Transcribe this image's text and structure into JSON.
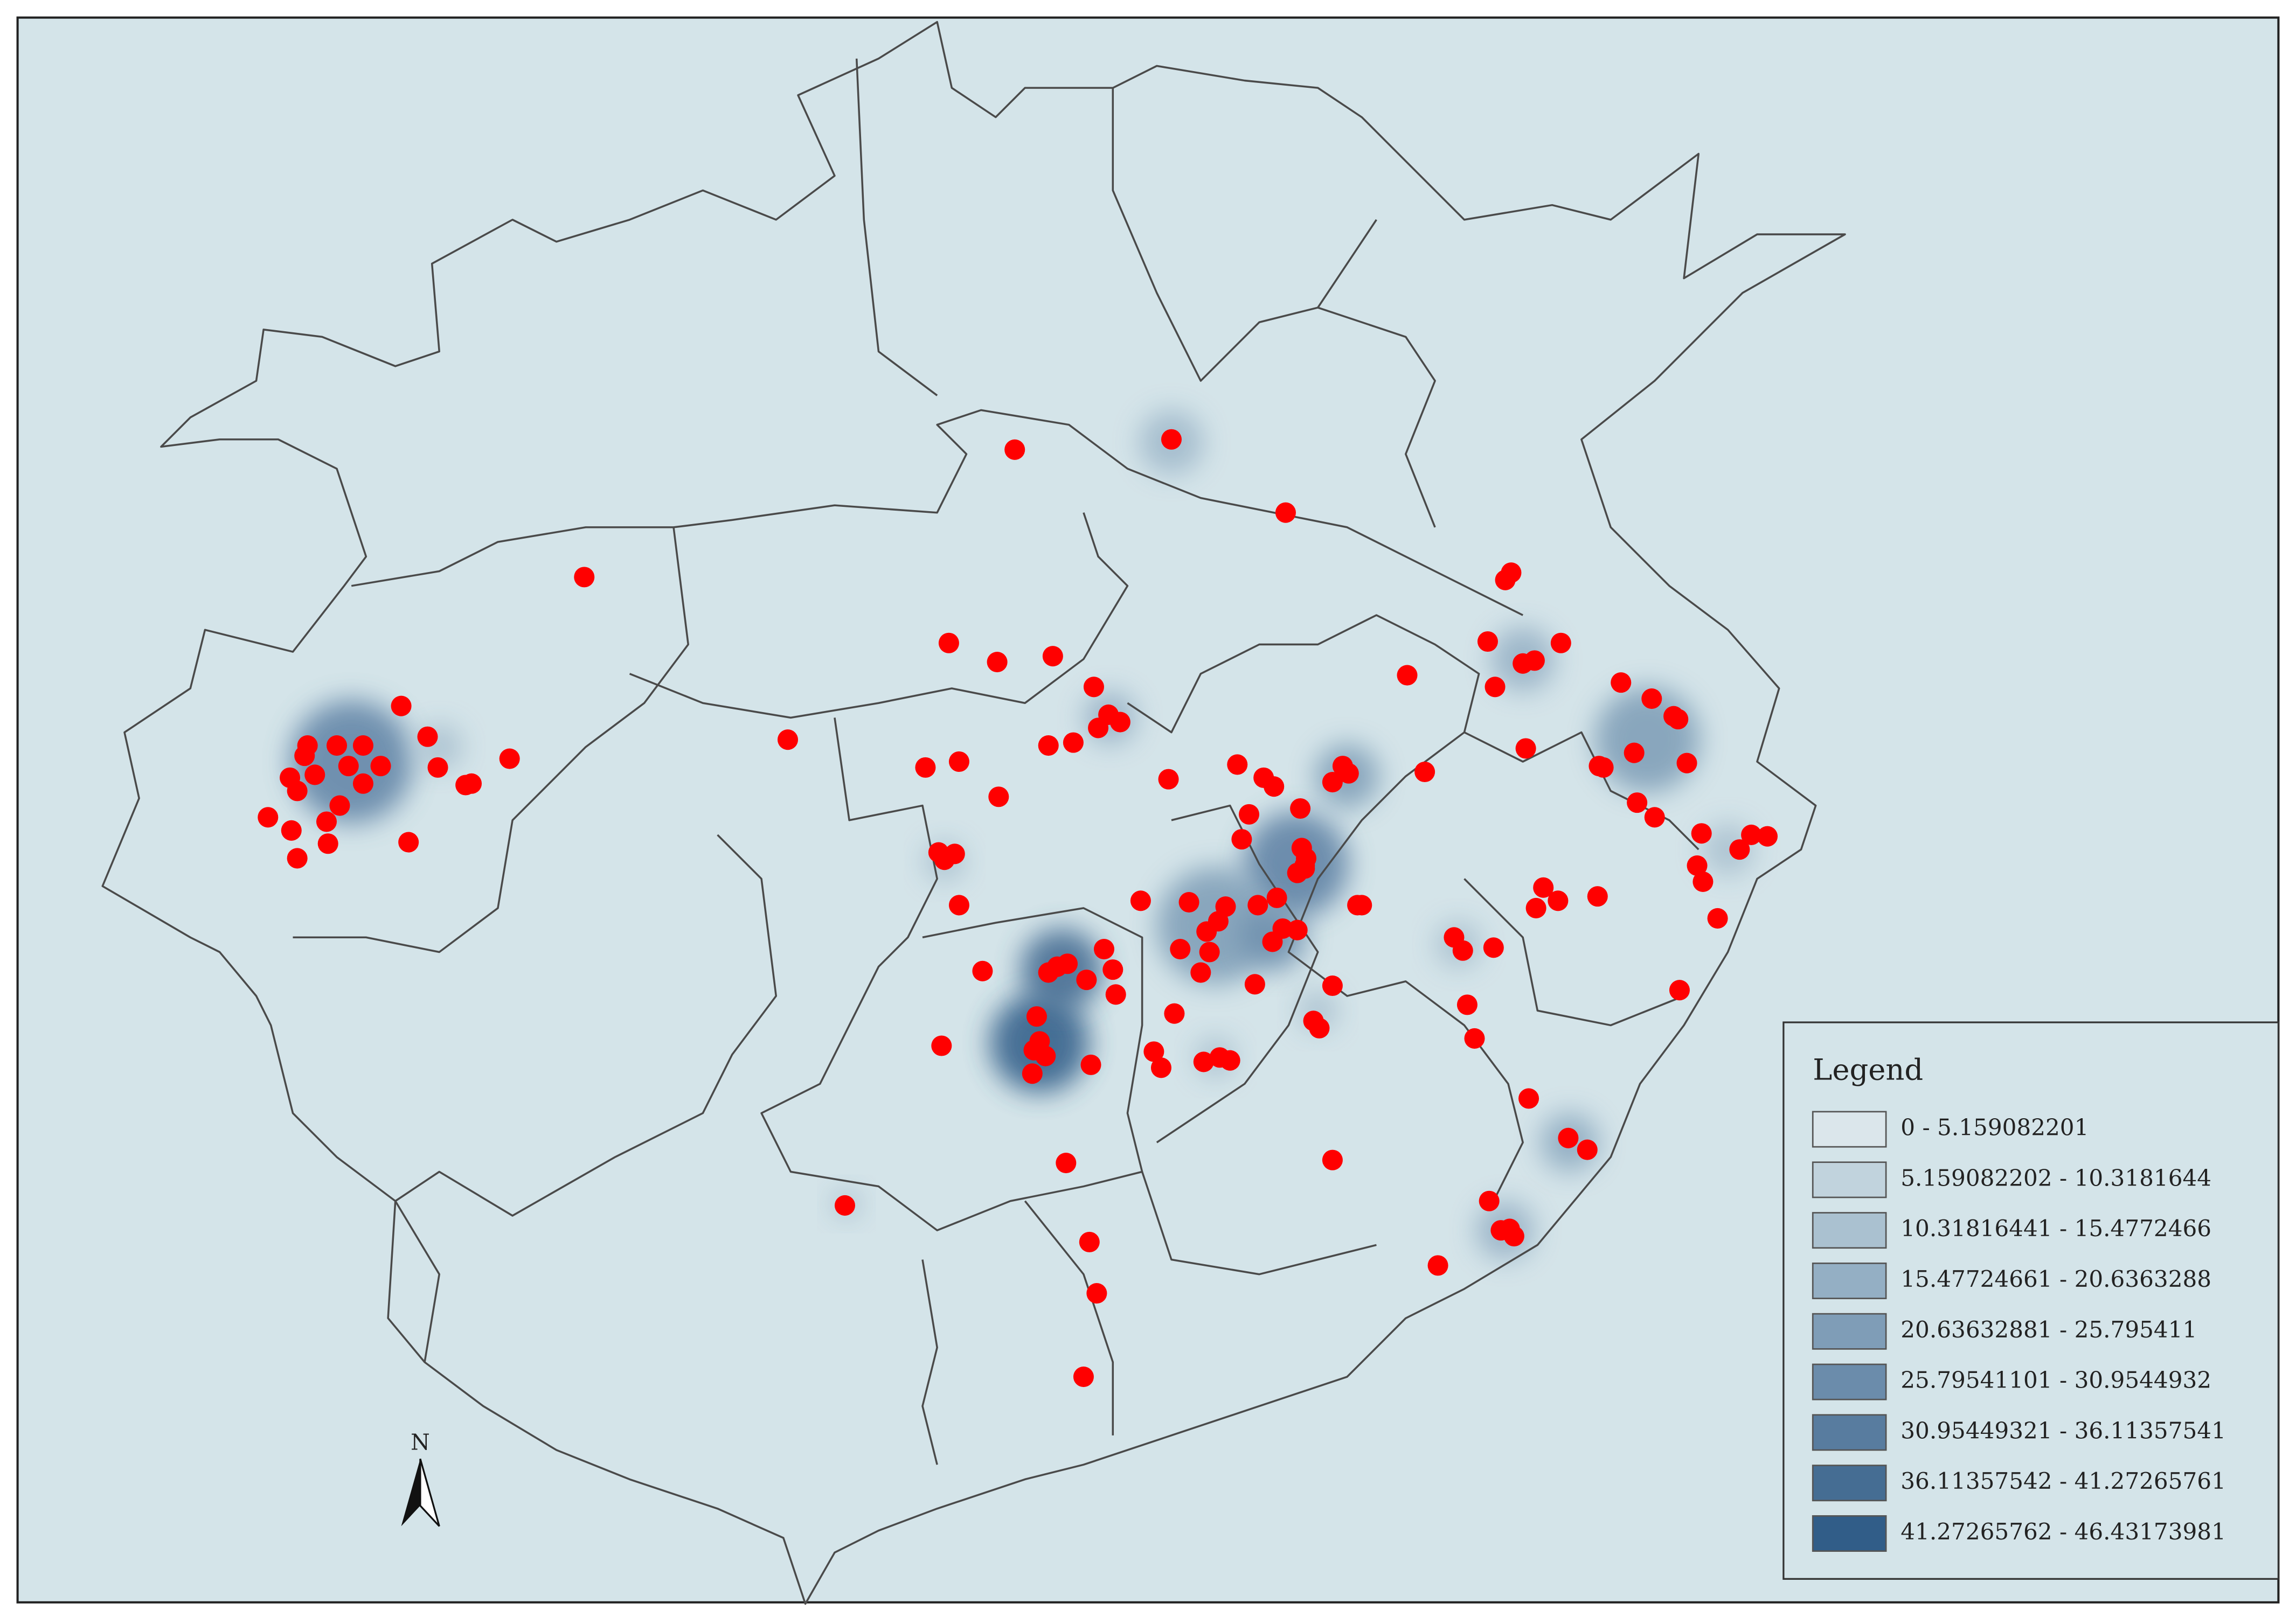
{
  "legend": {
    "title": "Legend",
    "items": [
      {
        "label": "0 - 5.159082201",
        "color": "#dbe6eb"
      },
      {
        "label": "5.159082202 - 10.3181644",
        "color": "#c1d3dd"
      },
      {
        "label": "10.31816441 - 15.4772466",
        "color": "#aac1d0"
      },
      {
        "label": "15.47724661 - 20.6363288",
        "color": "#94afc4"
      },
      {
        "label": "20.63632881 - 25.795411",
        "color": "#7f9db7"
      },
      {
        "label": "25.79541101 - 30.9544932",
        "color": "#6b8cab"
      },
      {
        "label": "30.95449321 - 36.11357541",
        "color": "#587c9f"
      },
      {
        "label": "36.11357542 - 41.27265761",
        "color": "#456d93"
      },
      {
        "label": "41.27265762 - 46.43173981",
        "color": "#315d88"
      }
    ]
  },
  "north_arrow": {
    "label": "N"
  }
}
